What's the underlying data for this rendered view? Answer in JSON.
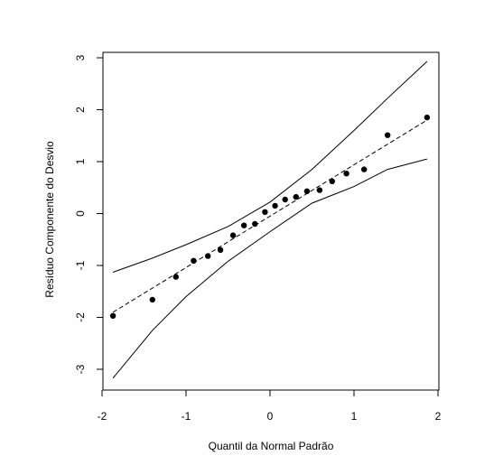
{
  "chart_data": {
    "type": "scatter",
    "title": "",
    "xlabel": "Quantil da Normal Padrão",
    "ylabel": "Resíduo Componente do Desvio",
    "xlim": [
      -2.0,
      2.0
    ],
    "ylim": [
      -3.3,
      3.2
    ],
    "x_ticks": [
      -2,
      -1,
      0,
      1,
      2
    ],
    "x_tick_labels": [
      "-2",
      "-1",
      "0",
      "1",
      "2"
    ],
    "y_ticks": [
      -3,
      -2,
      -1,
      0,
      1,
      2,
      3
    ],
    "y_tick_labels": [
      "-3",
      "-2",
      "-1",
      "0",
      "1",
      "2",
      "3"
    ],
    "grid": false,
    "legend": "none",
    "points": {
      "x": [
        -1.87,
        -1.4,
        -1.12,
        -0.91,
        -0.74,
        -0.59,
        -0.44,
        -0.31,
        -0.18,
        -0.06,
        0.06,
        0.18,
        0.31,
        0.44,
        0.59,
        0.74,
        0.91,
        1.12,
        1.4,
        1.87
      ],
      "y": [
        -1.97,
        -1.66,
        -1.22,
        -0.91,
        -0.82,
        -0.7,
        -0.42,
        -0.23,
        -0.2,
        0.03,
        0.15,
        0.27,
        0.32,
        0.43,
        0.45,
        0.62,
        0.77,
        0.85,
        1.51,
        1.85
      ]
    },
    "envelope_mean": {
      "x": [
        -1.87,
        1.87
      ],
      "y": [
        -1.9,
        1.8
      ]
    },
    "envelope_upper": {
      "x": [
        -1.87,
        -1.4,
        -1.0,
        -0.5,
        0.0,
        0.5,
        1.0,
        1.4,
        1.87
      ],
      "y": [
        -1.13,
        -0.86,
        -0.6,
        -0.25,
        0.22,
        0.85,
        1.6,
        2.22,
        2.93
      ]
    },
    "envelope_lower": {
      "x": [
        -1.87,
        -1.4,
        -1.0,
        -0.5,
        0.0,
        0.5,
        1.0,
        1.4,
        1.87
      ],
      "y": [
        -3.17,
        -2.25,
        -1.6,
        -0.92,
        -0.35,
        0.2,
        0.52,
        0.85,
        1.05
      ]
    }
  }
}
